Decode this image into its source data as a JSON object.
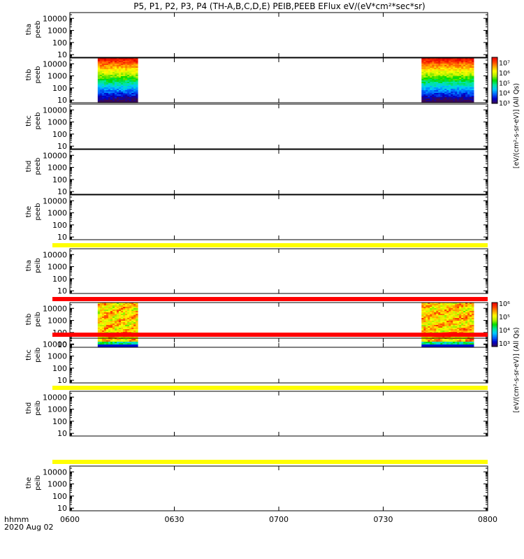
{
  "title": "P5, P1, P2, P3, P4 (TH-A,B,C,D,E) PEIB,PEEB EFlux eV/(eV*cm²*sec*sr)",
  "chart_data": {
    "type": "heatmap",
    "time_axis": {
      "label_line1": "hhmm",
      "label_line2": "2020 Aug 02",
      "ticks": [
        "0600",
        "0630",
        "0700",
        "0730",
        "0800"
      ],
      "tick_minutes": [
        0,
        30,
        60,
        90,
        120
      ],
      "range_minutes": [
        0,
        120
      ]
    },
    "energy_axis": {
      "scale": "log",
      "ticks": [
        "10",
        "100",
        "1000",
        "10000"
      ],
      "tick_values": [
        10,
        100,
        1000,
        10000
      ],
      "range": [
        6,
        30000
      ]
    },
    "colorbars": [
      {
        "for": "peeb",
        "label": "[eV/(cm²-s-sr-eV)] (All Qs)",
        "ticks": [
          "10³",
          "10⁴",
          "10⁵",
          "10⁶",
          "10⁷"
        ],
        "log_min": 3,
        "log_max": 7.6
      },
      {
        "for": "peib",
        "label": "[eV/(cm²-s-sr-eV)] (All Qs)",
        "ticks": [
          "10³",
          "10⁴",
          "10⁵",
          "10⁶"
        ],
        "log_min": 2.8,
        "log_max": 6.1
      }
    ],
    "panels": [
      {
        "line1": "tha",
        "line2": "peeb",
        "has_data": false
      },
      {
        "line1": "thb",
        "line2": "peeb",
        "has_data": true,
        "colorbar": 0,
        "data_intervals_minutes": [
          [
            8,
            19.5
          ],
          [
            101,
            116
          ]
        ]
      },
      {
        "line1": "thc",
        "line2": "peeb",
        "has_data": false
      },
      {
        "line1": "thd",
        "line2": "peeb",
        "has_data": false
      },
      {
        "line1": "the",
        "line2": "peeb",
        "has_data": false
      },
      {
        "line1": "tha",
        "line2": "peib",
        "has_data": false
      },
      {
        "line1": "thb",
        "line2": "peib",
        "has_data": true,
        "colorbar": 1,
        "data_intervals_minutes": [
          [
            8,
            19.5
          ],
          [
            101,
            116
          ]
        ]
      },
      {
        "line1": "thc",
        "line2": "peib",
        "has_data": false
      },
      {
        "line1": "thd",
        "line2": "peib",
        "has_data": false
      },
      {
        "line1": "the",
        "line2": "peib",
        "has_data": false
      }
    ],
    "status_bars": [
      {
        "after_panel": 5,
        "color": "#ffff00"
      },
      {
        "after_panel": 6,
        "color": "#ff0000"
      },
      {
        "after_panel": 7,
        "color": "#ff0000"
      },
      {
        "after_panel": 8,
        "color": "#ffff00"
      },
      {
        "after_panel": 9,
        "color": "#ffff00"
      }
    ],
    "colors": {
      "palette": [
        "#3c0a50",
        "#0000c8",
        "#0064ff",
        "#00c8ff",
        "#00e6a0",
        "#00dc00",
        "#b4f000",
        "#ffff00",
        "#ffa000",
        "#ff3c00",
        "#e60000"
      ]
    }
  }
}
